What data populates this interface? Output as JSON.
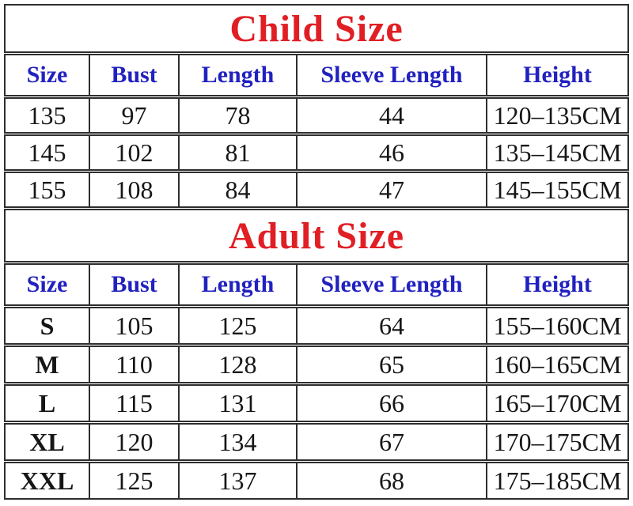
{
  "colors": {
    "title_red": "#e01f25",
    "header_blue": "#2121c0",
    "text": "#161616",
    "border": "#2e2e2e",
    "background": "#ffffff"
  },
  "chart_data": [
    {
      "type": "table",
      "title": "Child Size",
      "columns": [
        "Size",
        "Bust",
        "Length",
        "Sleeve Length",
        "Height"
      ],
      "rows": [
        [
          "135",
          "97",
          "78",
          "44",
          "120–135CM"
        ],
        [
          "145",
          "102",
          "81",
          "46",
          "135–145CM"
        ],
        [
          "155",
          "108",
          "84",
          "47",
          "145–155CM"
        ]
      ]
    },
    {
      "type": "table",
      "title": "Adult Size",
      "columns": [
        "Size",
        "Bust",
        "Length",
        "Sleeve Length",
        "Height"
      ],
      "rows": [
        [
          "S",
          "105",
          "125",
          "64",
          "155–160CM"
        ],
        [
          "M",
          "110",
          "128",
          "65",
          "160–165CM"
        ],
        [
          "L",
          "115",
          "131",
          "66",
          "165–170CM"
        ],
        [
          "XL",
          "120",
          "134",
          "67",
          "170–175CM"
        ],
        [
          "XXL",
          "125",
          "137",
          "68",
          "175–185CM"
        ]
      ]
    }
  ]
}
